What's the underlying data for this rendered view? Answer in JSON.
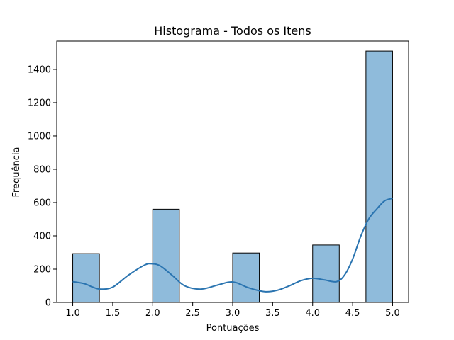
{
  "chart_data": {
    "type": "bar",
    "title": "Histograma - Todos os Itens",
    "xlabel": "Pontuações",
    "ylabel": "Frequência",
    "xlim": [
      0.8,
      5.2
    ],
    "ylim": [
      0,
      1570
    ],
    "grid": false,
    "bin_width": 0.3333,
    "bars": [
      {
        "x_start": 1.0,
        "x_end": 1.3333,
        "value": 293
      },
      {
        "x_start": 2.0,
        "x_end": 2.3333,
        "value": 560
      },
      {
        "x_start": 3.0,
        "x_end": 3.3333,
        "value": 297
      },
      {
        "x_start": 4.0,
        "x_end": 4.3333,
        "value": 345
      },
      {
        "x_start": 4.6667,
        "x_end": 5.0,
        "value": 1510
      }
    ],
    "kde": {
      "x": [
        1.0,
        1.15,
        1.25,
        1.35,
        1.5,
        1.7,
        1.9,
        2.0,
        2.1,
        2.25,
        2.4,
        2.6,
        2.8,
        2.95,
        3.05,
        3.2,
        3.4,
        3.55,
        3.7,
        3.85,
        4.0,
        4.15,
        4.3,
        4.4,
        4.5,
        4.6,
        4.7,
        4.8,
        4.9,
        5.0
      ],
      "y": [
        125,
        112,
        92,
        80,
        92,
        165,
        225,
        232,
        218,
        160,
        100,
        80,
        103,
        122,
        118,
        88,
        65,
        72,
        98,
        130,
        145,
        135,
        125,
        165,
        260,
        395,
        500,
        560,
        610,
        625
      ]
    },
    "xticks": [
      "1.0",
      "1.5",
      "2.0",
      "2.5",
      "3.0",
      "3.5",
      "4.0",
      "4.5",
      "5.0"
    ],
    "yticks": [
      "0",
      "200",
      "400",
      "600",
      "800",
      "1000",
      "1200",
      "1400"
    ],
    "colors": {
      "bar_fill": "#8fbbdb",
      "bar_edge": "#000000",
      "kde_line": "#2a74b0"
    }
  }
}
